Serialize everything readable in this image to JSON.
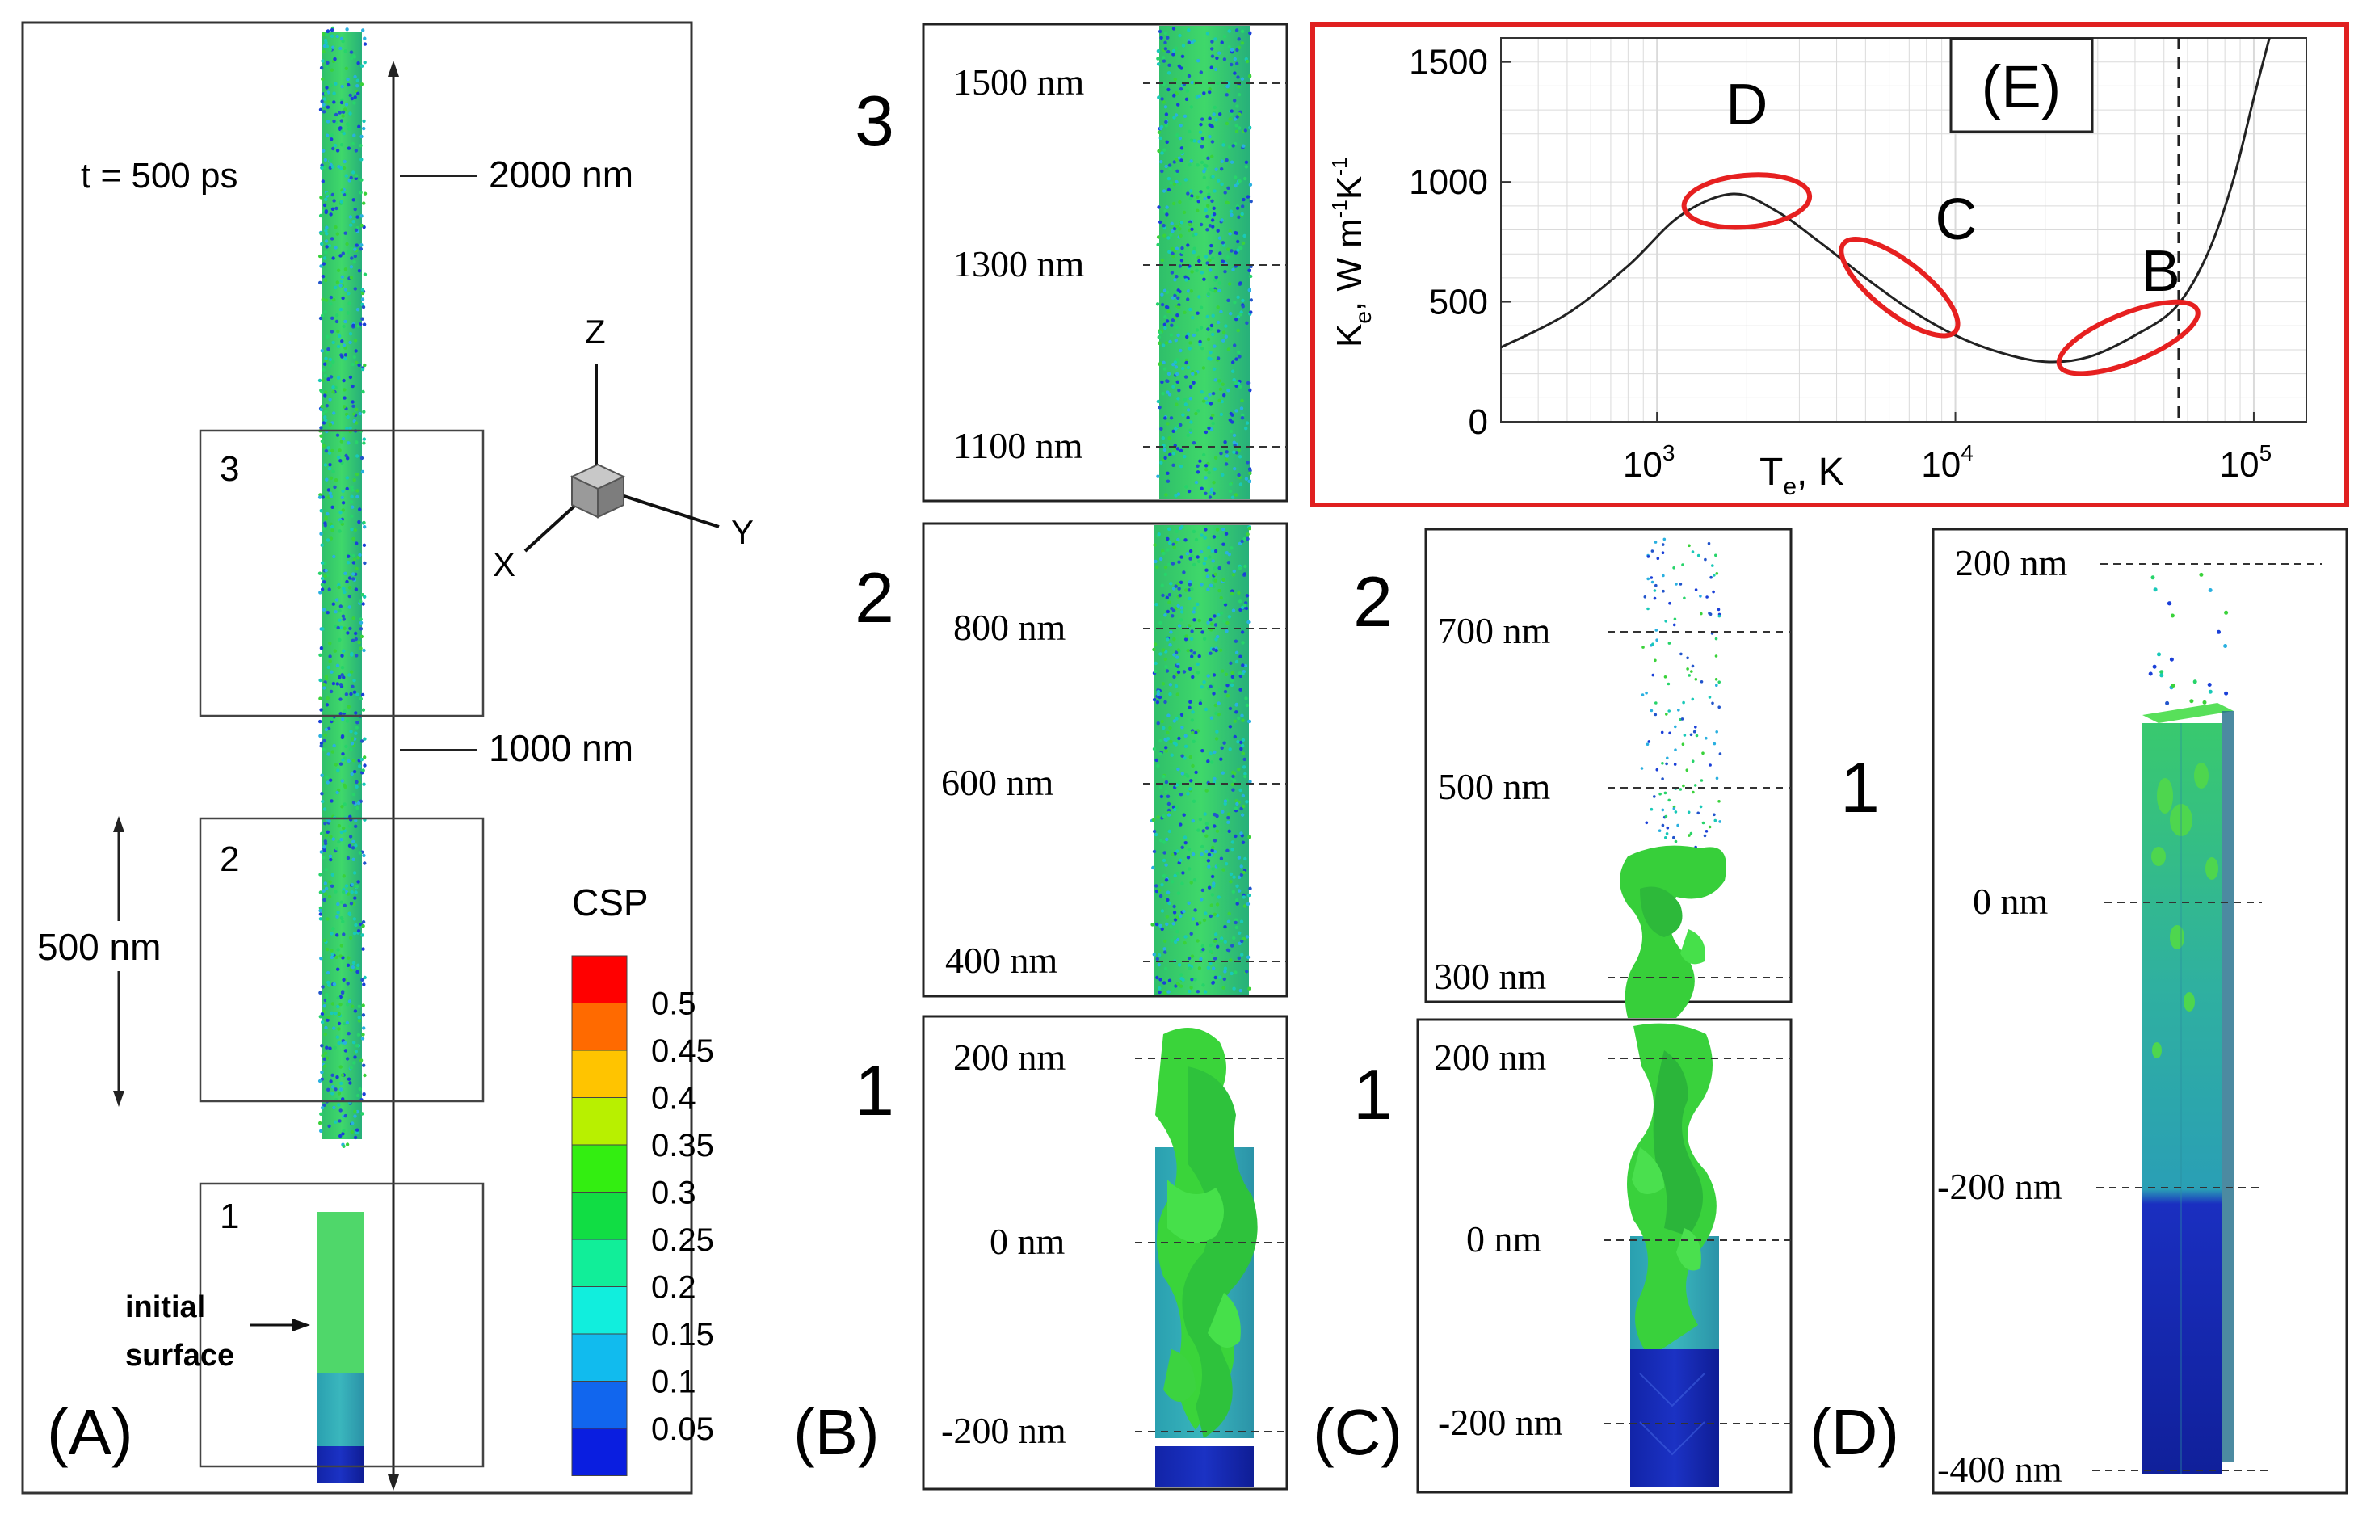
{
  "panels": {
    "A": {
      "label": "(A)",
      "time": "t = 500 ps",
      "scale_2000": "2000 nm",
      "scale_1000": "1000 nm",
      "scale_500": "500 nm",
      "box_labels": [
        "1",
        "2",
        "3"
      ],
      "initial_surface_line1": "initial",
      "initial_surface_line2": "surface",
      "axes": {
        "z": "Z",
        "x": "X",
        "y": "Y"
      },
      "legend": {
        "title": "CSP",
        "levels": [
          "0.5",
          "0.45",
          "0.4",
          "0.35",
          "0.3",
          "0.25",
          "0.2",
          "0.15",
          "0.1",
          "0.05"
        ],
        "colors": [
          "#ff0000",
          "#ff6a00",
          "#ffc400",
          "#b8f000",
          "#33ee11",
          "#11dd44",
          "#11ee99",
          "#11eedd",
          "#11bbee",
          "#1166ee",
          "#0a1ee0"
        ]
      }
    },
    "B": {
      "label": "(B)",
      "win3": {
        "num": "3",
        "ticks": [
          "1500 nm",
          "1300 nm",
          "1100 nm"
        ]
      },
      "win2": {
        "num": "2",
        "ticks": [
          "800 nm",
          "600 nm",
          "400 nm"
        ]
      },
      "win1": {
        "num": "1",
        "ticks": [
          "200 nm",
          "0 nm",
          "-200 nm"
        ]
      }
    },
    "C": {
      "label": "(C)",
      "win2": {
        "num": "2",
        "ticks": [
          "700 nm",
          "500 nm",
          "300 nm"
        ]
      },
      "win1": {
        "num": "1",
        "ticks": [
          "200 nm",
          "0 nm",
          "-200 nm"
        ]
      }
    },
    "D": {
      "label": "(D)",
      "num": "1",
      "ticks": [
        "200 nm",
        "0 nm",
        "-200 nm",
        "-400 nm"
      ]
    }
  },
  "chart_data": {
    "type": "line",
    "title": "(E)",
    "xlabel": "T",
    "xlabel_sub": "e",
    "xlabel_unit": ", K",
    "ylabel": "K",
    "ylabel_sub": "e",
    "ylabel_unit": ", W m",
    "ylabel_exp1": "-1",
    "ylabel_mid": "K",
    "ylabel_exp2": "-1",
    "xscale": "log",
    "xlim": [
      300,
      150000
    ],
    "ylim": [
      0,
      1600
    ],
    "x_ticks": [
      {
        "value": 1000,
        "base": "10",
        "exp": "3"
      },
      {
        "value": 10000,
        "base": "10",
        "exp": "4"
      },
      {
        "value": 100000,
        "base": "10",
        "exp": "5"
      }
    ],
    "y_ticks": [
      "0",
      "500",
      "1000",
      "1500"
    ],
    "y_tick_values": [
      0,
      500,
      1000,
      1500
    ],
    "series": [
      {
        "name": "Ke",
        "x": [
          300,
          500,
          800,
          1200,
          1800,
          2500,
          3500,
          5000,
          7000,
          10000,
          14000,
          20000,
          28000,
          40000,
          55000,
          70000,
          85000,
          100000,
          115000
        ],
        "y": [
          310,
          450,
          650,
          860,
          950,
          880,
          750,
          600,
          470,
          360,
          290,
          250,
          270,
          360,
          480,
          700,
          1000,
          1350,
          1640
        ]
      }
    ],
    "vline_x": 56000,
    "highlights": [
      {
        "label": "D",
        "x": 2000,
        "y": 920
      },
      {
        "label": "C",
        "x": 6500,
        "y": 560
      },
      {
        "label": "B",
        "x": 38000,
        "y": 350
      }
    ],
    "frame_color": "#e02020",
    "highlight_color": "#e62020"
  }
}
